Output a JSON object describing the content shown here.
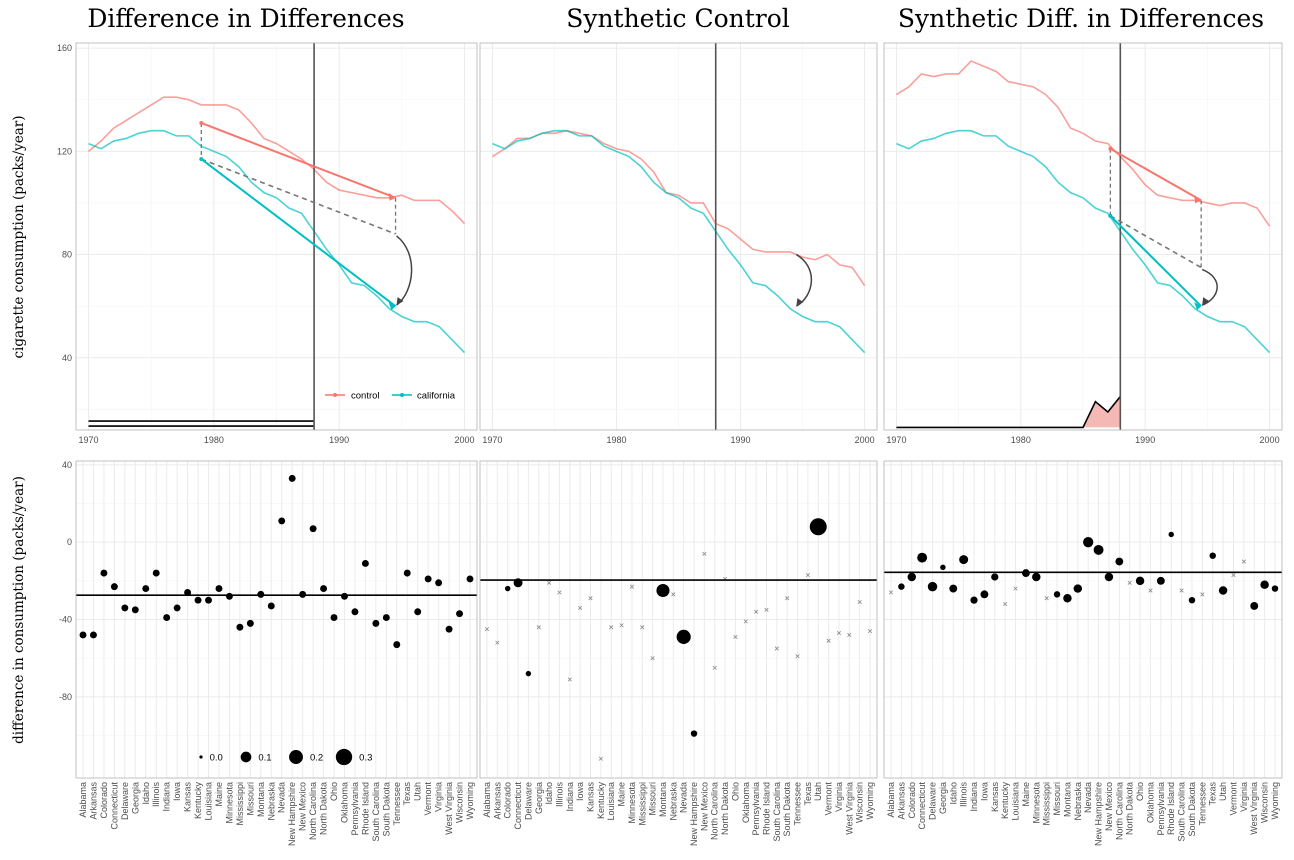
{
  "colors": {
    "control": "#f8766d",
    "california": "#00bfc4",
    "grid": "#ebebeb",
    "treat": "#555555",
    "weight_fill": "#f4b9b4"
  },
  "titles": [
    "Difference in Differences",
    "Synthetic Control",
    "Synthetic Diff. in Differences"
  ],
  "ylabels": {
    "top": "cigarette consumption (packs/year)",
    "bottom": "difference in consumption (packs/year)"
  },
  "legend_lines": {
    "control": "control",
    "california": "california"
  },
  "legend_sizes": {
    "labels": [
      "0.0",
      "0.1",
      "0.2",
      "0.3"
    ],
    "values": [
      0.0,
      0.1,
      0.2,
      0.3
    ]
  },
  "chart_data": [
    {
      "type": "line",
      "title": "Difference in Differences",
      "xlim": [
        1969,
        2001
      ],
      "ylim": [
        12,
        162
      ],
      "xticks": [
        1970,
        1980,
        1990,
        2000
      ],
      "yticks": [
        40,
        80,
        120,
        160
      ],
      "treatment_year": 1988,
      "x": [
        1970,
        1971,
        1972,
        1973,
        1974,
        1975,
        1976,
        1977,
        1978,
        1979,
        1980,
        1981,
        1982,
        1983,
        1984,
        1985,
        1986,
        1987,
        1988,
        1989,
        1990,
        1991,
        1992,
        1993,
        1994,
        1995,
        1996,
        1997,
        1998,
        1999,
        2000
      ],
      "series": [
        {
          "name": "control",
          "values": [
            120,
            124,
            129,
            132,
            135,
            138,
            141,
            141,
            140,
            138,
            138,
            138,
            136,
            131,
            125,
            123,
            120,
            117,
            113,
            108,
            105,
            104,
            103,
            102,
            102,
            103,
            101,
            101,
            101,
            97,
            92
          ]
        },
        {
          "name": "california",
          "values": [
            123,
            121,
            124,
            125,
            127,
            128,
            128,
            126,
            126,
            122,
            120,
            118,
            114,
            108,
            104,
            102,
            98,
            96,
            89,
            82,
            76,
            69,
            68,
            64,
            59,
            56,
            54,
            54,
            52,
            47,
            42
          ]
        }
      ],
      "arrows": {
        "control": {
          "x": [
            1979.0,
            1994.5
          ],
          "y": [
            131,
            102
          ]
        },
        "california": {
          "x": [
            1979.0,
            1994.5
          ],
          "y": [
            117,
            60
          ]
        },
        "counterfactual": {
          "x": [
            1979.0,
            1994.5
          ],
          "y": [
            117,
            88
          ]
        }
      },
      "weights": {
        "type": "flat",
        "x": [
          1970,
          1988
        ],
        "y": [
          14.5
        ]
      }
    },
    {
      "type": "line",
      "title": "Synthetic Control",
      "xlim": [
        1969,
        2001
      ],
      "ylim": [
        12,
        162
      ],
      "xticks": [
        1970,
        1980,
        1990,
        2000
      ],
      "yticks": [
        40,
        80,
        120,
        160
      ],
      "treatment_year": 1988,
      "x": [
        1970,
        1971,
        1972,
        1973,
        1974,
        1975,
        1976,
        1977,
        1978,
        1979,
        1980,
        1981,
        1982,
        1983,
        1984,
        1985,
        1986,
        1987,
        1988,
        1989,
        1990,
        1991,
        1992,
        1993,
        1994,
        1995,
        1996,
        1997,
        1998,
        1999,
        2000
      ],
      "series": [
        {
          "name": "control",
          "values": [
            118,
            121,
            125,
            125,
            127,
            127,
            128,
            127,
            126,
            123,
            121,
            120,
            117,
            112,
            104,
            103,
            100,
            100,
            92,
            90,
            86,
            82,
            81,
            81,
            81,
            79,
            78,
            80,
            76,
            75,
            68
          ]
        },
        {
          "name": "california",
          "values": [
            123,
            121,
            124,
            125,
            127,
            128,
            128,
            126,
            126,
            122,
            120,
            118,
            114,
            108,
            104,
            102,
            98,
            96,
            89,
            82,
            76,
            69,
            68,
            64,
            59,
            56,
            54,
            54,
            52,
            47,
            42
          ]
        }
      ],
      "arrows": {
        "control": {
          "x": [
            1994.5,
            1994.5
          ],
          "y": [
            80,
            80
          ]
        },
        "california": {
          "x": [
            1994.5,
            1994.5
          ],
          "y": [
            60,
            60
          ]
        },
        "counterfactual": {
          "x": [
            1994.5,
            1994.5
          ],
          "y": [
            80,
            80
          ]
        }
      },
      "weights": null
    },
    {
      "type": "line",
      "title": "Synthetic Diff. in Differences",
      "xlim": [
        1969,
        2001
      ],
      "ylim": [
        12,
        162
      ],
      "xticks": [
        1970,
        1980,
        1990,
        2000
      ],
      "yticks": [
        40,
        80,
        120,
        160
      ],
      "treatment_year": 1988,
      "x": [
        1970,
        1971,
        1972,
        1973,
        1974,
        1975,
        1976,
        1977,
        1978,
        1979,
        1980,
        1981,
        1982,
        1983,
        1984,
        1985,
        1986,
        1987,
        1988,
        1989,
        1990,
        1991,
        1992,
        1993,
        1994,
        1995,
        1996,
        1997,
        1998,
        1999,
        2000
      ],
      "series": [
        {
          "name": "control",
          "values": [
            142,
            145,
            150,
            149,
            150,
            150,
            155,
            153,
            151,
            147,
            146,
            145,
            142,
            137,
            129,
            127,
            124,
            123,
            118,
            113,
            107,
            103,
            102,
            101,
            101,
            100,
            99,
            100,
            100,
            98,
            91
          ]
        },
        {
          "name": "california",
          "values": [
            123,
            121,
            124,
            125,
            127,
            128,
            128,
            126,
            126,
            122,
            120,
            118,
            114,
            108,
            104,
            102,
            98,
            96,
            89,
            82,
            76,
            69,
            68,
            64,
            59,
            56,
            54,
            54,
            52,
            47,
            42
          ]
        }
      ],
      "arrows": {
        "control": {
          "x": [
            1987.2,
            1994.5
          ],
          "y": [
            121,
            101
          ]
        },
        "california": {
          "x": [
            1987.2,
            1994.5
          ],
          "y": [
            95,
            60
          ]
        },
        "counterfactual": {
          "x": [
            1987.2,
            1994.5
          ],
          "y": [
            95,
            75
          ]
        }
      },
      "weights": {
        "type": "spike",
        "x": [
          1970,
          1985,
          1986,
          1987,
          1988
        ],
        "y": [
          13,
          13,
          23,
          19,
          25
        ],
        "base": 13
      }
    },
    {
      "type": "scatter",
      "title": "",
      "ylim": [
        -122,
        42
      ],
      "yticks": [
        -80,
        -40,
        0,
        40
      ],
      "categories": [
        "Alabama",
        "Arkansas",
        "Colorado",
        "Connecticut",
        "Delaware",
        "Georgia",
        "Idaho",
        "Illinois",
        "Indiana",
        "Iowa",
        "Kansas",
        "Kentucky",
        "Louisiana",
        "Maine",
        "Minnesota",
        "Mississippi",
        "Missouri",
        "Montana",
        "Nebraska",
        "Nevada",
        "New Hampshire",
        "New Mexico",
        "North Carolina",
        "North Dakota",
        "Ohio",
        "Oklahoma",
        "Pennsylvania",
        "Rhode Island",
        "South Carolina",
        "South Dakota",
        "Tennessee",
        "Texas",
        "Utah",
        "Vermont",
        "Virginia",
        "West Virginia",
        "Wisconsin",
        "Wyoming"
      ],
      "values": [
        -48,
        -48,
        -16,
        -23,
        -34,
        -35,
        -24,
        -16,
        -39,
        -34,
        -26,
        -30,
        -30,
        -24,
        -28,
        -44,
        -42,
        -27,
        -33,
        11,
        33,
        -27,
        7,
        -24,
        -39,
        -28,
        -36,
        -11,
        -42,
        -39,
        -53,
        -16,
        -36,
        -19,
        -21,
        -45,
        -37,
        -19
      ],
      "sizes": [
        0.026,
        0.026,
        0.026,
        0.026,
        0.026,
        0.026,
        0.026,
        0.026,
        0.026,
        0.026,
        0.026,
        0.026,
        0.026,
        0.026,
        0.026,
        0.026,
        0.026,
        0.026,
        0.026,
        0.026,
        0.026,
        0.026,
        0.026,
        0.026,
        0.026,
        0.026,
        0.026,
        0.026,
        0.026,
        0.026,
        0.026,
        0.026,
        0.026,
        0.026,
        0.026,
        0.026,
        0.026,
        0.026
      ],
      "hline": -27.4
    },
    {
      "type": "scatter",
      "title": "",
      "ylim": [
        -122,
        42
      ],
      "yticks": [
        -80,
        -40,
        0,
        40
      ],
      "categories": [
        "Alabama",
        "Arkansas",
        "Colorado",
        "Connecticut",
        "Delaware",
        "Georgia",
        "Idaho",
        "Illinois",
        "Indiana",
        "Iowa",
        "Kansas",
        "Kentucky",
        "Louisiana",
        "Maine",
        "Minnesota",
        "Mississippi",
        "Missouri",
        "Montana",
        "Nebraska",
        "Nevada",
        "New Hampshire",
        "New Mexico",
        "North Carolina",
        "North Dakota",
        "Ohio",
        "Oklahoma",
        "Pennsylvania",
        "Rhode Island",
        "South Carolina",
        "South Dakota",
        "Tennessee",
        "Texas",
        "Utah",
        "Vermont",
        "Virginia",
        "West Virginia",
        "Wisconsin",
        "Wyoming"
      ],
      "values": [
        -45,
        -52,
        -24,
        -21,
        -68,
        -44,
        -21,
        -26,
        -71,
        -34,
        -29,
        -112,
        -44,
        -43,
        -23,
        -44,
        -60,
        -25,
        -27,
        -49,
        -99,
        -6,
        -65,
        -19,
        -49,
        -41,
        -36,
        -35,
        -55,
        -29,
        -59,
        -17,
        8,
        -51,
        -47,
        -48,
        -31,
        -46
      ],
      "sizes": [
        0,
        0,
        0.01,
        0.06,
        0.01,
        0,
        0,
        0,
        0,
        0,
        0,
        0,
        0,
        0,
        0,
        0,
        0,
        0.17,
        0,
        0.21,
        0.02,
        0,
        0,
        0,
        0,
        0,
        0,
        0,
        0,
        0,
        0,
        0,
        0.33,
        0,
        0,
        0,
        0,
        0
      ],
      "hline": -19.6
    },
    {
      "type": "scatter",
      "title": "",
      "ylim": [
        -122,
        42
      ],
      "yticks": [
        -80,
        -40,
        0,
        40
      ],
      "categories": [
        "Alabama",
        "Arkansas",
        "Colorado",
        "Connecticut",
        "Delaware",
        "Georgia",
        "Idaho",
        "Illinois",
        "Indiana",
        "Iowa",
        "Kansas",
        "Kentucky",
        "Louisiana",
        "Maine",
        "Minnesota",
        "Mississippi",
        "Missouri",
        "Montana",
        "Nebraska",
        "Nevada",
        "New Hampshire",
        "New Mexico",
        "North Carolina",
        "North Dakota",
        "Ohio",
        "Oklahoma",
        "Pennsylvania",
        "Rhode Island",
        "South Carolina",
        "South Dakota",
        "Tennessee",
        "Texas",
        "Utah",
        "Vermont",
        "Virginia",
        "West Virginia",
        "Wisconsin",
        "Wyoming"
      ],
      "values": [
        -26,
        -23,
        -18,
        -8,
        -23,
        -13,
        -24,
        -9,
        -30,
        -27,
        -18,
        -32,
        -24,
        -16,
        -18,
        -29,
        -27,
        -29,
        -24,
        0,
        -4,
        -18,
        -10,
        -21,
        -20,
        -25,
        -20,
        4,
        -25,
        -30,
        -27,
        -7,
        -25,
        -17,
        -10,
        -33,
        -22,
        -24
      ],
      "sizes": [
        0,
        0.02,
        0.05,
        0.08,
        0.07,
        0.01,
        0.04,
        0.06,
        0.03,
        0.04,
        0.03,
        0,
        0,
        0.04,
        0.05,
        0,
        0.02,
        0.05,
        0.05,
        0.09,
        0.08,
        0.05,
        0.04,
        0,
        0.05,
        0,
        0.04,
        0.01,
        0,
        0.02,
        0,
        0.02,
        0.05,
        0,
        0,
        0.04,
        0.05,
        0.02
      ],
      "hline": -15.6
    }
  ]
}
